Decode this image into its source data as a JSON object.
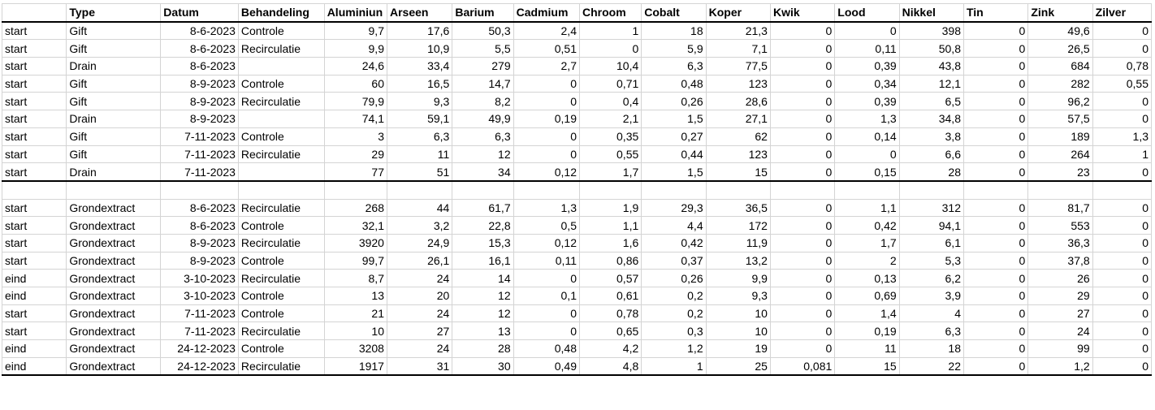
{
  "columns": [
    "",
    "Type",
    "Datum",
    "Behandeling",
    "Aluminiun",
    "Arseen",
    "Barium",
    "Cadmium",
    "Chroom",
    "Cobalt",
    "Koper",
    "Kwik",
    "Lood",
    "Nikkel",
    "Tin",
    "Zink",
    "Zilver"
  ],
  "group1": [
    [
      "start",
      "Gift",
      "8-6-2023",
      "Controle",
      "9,7",
      "17,6",
      "50,3",
      "2,4",
      "1",
      "18",
      "21,3",
      "0",
      "0",
      "398",
      "0",
      "49,6",
      "0"
    ],
    [
      "start",
      "Gift",
      "8-6-2023",
      "Recirculatie",
      "9,9",
      "10,9",
      "5,5",
      "0,51",
      "0",
      "5,9",
      "7,1",
      "0",
      "0,11",
      "50,8",
      "0",
      "26,5",
      "0"
    ],
    [
      "start",
      "Drain",
      "8-6-2023",
      "",
      "24,6",
      "33,4",
      "279",
      "2,7",
      "10,4",
      "6,3",
      "77,5",
      "0",
      "0,39",
      "43,8",
      "0",
      "684",
      "0,78"
    ],
    [
      "start",
      "Gift",
      "8-9-2023",
      "Controle",
      "60",
      "16,5",
      "14,7",
      "0",
      "0,71",
      "0,48",
      "123",
      "0",
      "0,34",
      "12,1",
      "0",
      "282",
      "0,55"
    ],
    [
      "start",
      "Gift",
      "8-9-2023",
      "Recirculatie",
      "79,9",
      "9,3",
      "8,2",
      "0",
      "0,4",
      "0,26",
      "28,6",
      "0",
      "0,39",
      "6,5",
      "0",
      "96,2",
      "0"
    ],
    [
      "start",
      "Drain",
      "8-9-2023",
      "",
      "74,1",
      "59,1",
      "49,9",
      "0,19",
      "2,1",
      "1,5",
      "27,1",
      "0",
      "1,3",
      "34,8",
      "0",
      "57,5",
      "0"
    ],
    [
      "start",
      "Gift",
      "7-11-2023",
      "Controle",
      "3",
      "6,3",
      "6,3",
      "0",
      "0,35",
      "0,27",
      "62",
      "0",
      "0,14",
      "3,8",
      "0",
      "189",
      "1,3"
    ],
    [
      "start",
      "Gift",
      "7-11-2023",
      "Recirculatie",
      "29",
      "11",
      "12",
      "0",
      "0,55",
      "0,44",
      "123",
      "0",
      "0",
      "6,6",
      "0",
      "264",
      "1"
    ],
    [
      "start",
      "Drain",
      "7-11-2023",
      "",
      "77",
      "51",
      "34",
      "0,12",
      "1,7",
      "1,5",
      "15",
      "0",
      "0,15",
      "28",
      "0",
      "23",
      "0"
    ]
  ],
  "group2": [
    [
      "start",
      "Grondextract",
      "8-6-2023",
      "Recirculatie",
      "268",
      "44",
      "61,7",
      "1,3",
      "1,9",
      "29,3",
      "36,5",
      "0",
      "1,1",
      "312",
      "0",
      "81,7",
      "0"
    ],
    [
      "start",
      "Grondextract",
      "8-6-2023",
      "Controle",
      "32,1",
      "3,2",
      "22,8",
      "0,5",
      "1,1",
      "4,4",
      "172",
      "0",
      "0,42",
      "94,1",
      "0",
      "553",
      "0"
    ],
    [
      "start",
      "Grondextract",
      "8-9-2023",
      "Recirculatie",
      "3920",
      "24,9",
      "15,3",
      "0,12",
      "1,6",
      "0,42",
      "11,9",
      "0",
      "1,7",
      "6,1",
      "0",
      "36,3",
      "0"
    ],
    [
      "start",
      "Grondextract",
      "8-9-2023",
      "Controle",
      "99,7",
      "26,1",
      "16,1",
      "0,11",
      "0,86",
      "0,37",
      "13,2",
      "0",
      "2",
      "5,3",
      "0",
      "37,8",
      "0"
    ],
    [
      "eind",
      "Grondextract",
      "3-10-2023",
      "Recirculatie",
      "8,7",
      "24",
      "14",
      "0",
      "0,57",
      "0,26",
      "9,9",
      "0",
      "0,13",
      "6,2",
      "0",
      "26",
      "0"
    ],
    [
      "eind",
      "Grondextract",
      "3-10-2023",
      "Controle",
      "13",
      "20",
      "12",
      "0,1",
      "0,61",
      "0,2",
      "9,3",
      "0",
      "0,69",
      "3,9",
      "0",
      "29",
      "0"
    ],
    [
      "start",
      "Grondextract",
      "7-11-2023",
      "Controle",
      "21",
      "24",
      "12",
      "0",
      "0,78",
      "0,2",
      "10",
      "0",
      "1,4",
      "4",
      "0",
      "27",
      "0"
    ],
    [
      "start",
      "Grondextract",
      "7-11-2023",
      "Recirculatie",
      "10",
      "27",
      "13",
      "0",
      "0,65",
      "0,3",
      "10",
      "0",
      "0,19",
      "6,3",
      "0",
      "24",
      "0"
    ],
    [
      "eind",
      "Grondextract",
      "24-12-2023",
      "Controle",
      "3208",
      "24",
      "28",
      "0,48",
      "4,2",
      "1,2",
      "19",
      "0",
      "11",
      "18",
      "0",
      "99",
      "0"
    ],
    [
      "eind",
      "Grondextract",
      "24-12-2023",
      "Recirculatie",
      "1917",
      "31",
      "30",
      "0,49",
      "4,8",
      "1",
      "25",
      "0,081",
      "15",
      "22",
      "0",
      "1,2",
      "0"
    ]
  ]
}
